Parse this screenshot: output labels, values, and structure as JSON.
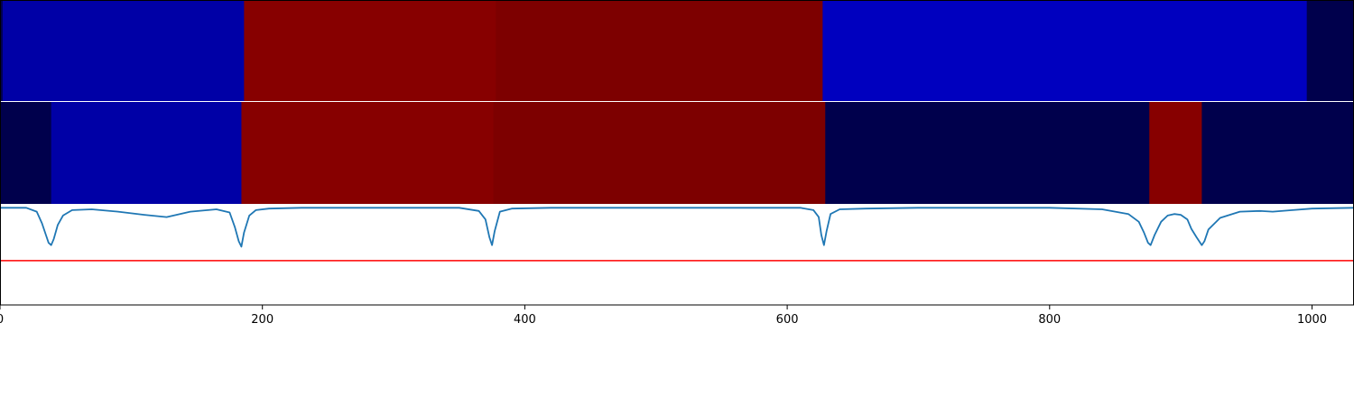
{
  "chart_data": {
    "type": "heatmap",
    "title": "",
    "xlabel": "",
    "ylabel": "",
    "xlim": [
      0,
      1032
    ],
    "x_ticks": [
      0,
      200,
      400,
      600,
      800,
      1000
    ],
    "grid": false,
    "legend": "none",
    "segment_rows": [
      {
        "segments": [
          {
            "start": 0,
            "end": 2,
            "color": "#00004c"
          },
          {
            "start": 2,
            "end": 186,
            "color": "#0000a6"
          },
          {
            "start": 186,
            "end": 378,
            "color": "#870000"
          },
          {
            "start": 378,
            "end": 627,
            "color": "#7d0000"
          },
          {
            "start": 627,
            "end": 996,
            "color": "#0000bf"
          },
          {
            "start": 996,
            "end": 1032,
            "color": "#00004c"
          }
        ]
      },
      {
        "segments": [
          {
            "start": 0,
            "end": 39,
            "color": "#00004c"
          },
          {
            "start": 39,
            "end": 184,
            "color": "#0000a6"
          },
          {
            "start": 184,
            "end": 376,
            "color": "#870000"
          },
          {
            "start": 376,
            "end": 629,
            "color": "#7d0000"
          },
          {
            "start": 629,
            "end": 876,
            "color": "#00004c"
          },
          {
            "start": 876,
            "end": 916,
            "color": "#870000"
          },
          {
            "start": 916,
            "end": 1032,
            "color": "#00004c"
          }
        ]
      }
    ],
    "line_panel": {
      "ylim": [
        -1.25,
        0.05
      ],
      "threshold": -0.68,
      "threshold_color": "#ff0000",
      "series": [
        {
          "color": "#1f77b4",
          "x": [
            0,
            20,
            28,
            32,
            35,
            37,
            39,
            41,
            44,
            48,
            55,
            70,
            90,
            110,
            127,
            145,
            165,
            175,
            179,
            182,
            184,
            186,
            190,
            195,
            205,
            230,
            300,
            350,
            365,
            370,
            373,
            375,
            377,
            381,
            390,
            420,
            500,
            560,
            610,
            620,
            624,
            626,
            628,
            630,
            633,
            640,
            660,
            700,
            800,
            840,
            860,
            868,
            872,
            875,
            877,
            880,
            885,
            890,
            895,
            900,
            905,
            908,
            912,
            916,
            918,
            921,
            930,
            945,
            960,
            970,
            985,
            1000,
            1032
          ],
          "y": [
            0,
            0,
            -0.05,
            -0.2,
            -0.35,
            -0.45,
            -0.48,
            -0.4,
            -0.22,
            -0.1,
            -0.03,
            -0.02,
            -0.05,
            -0.09,
            -0.12,
            -0.05,
            -0.02,
            -0.06,
            -0.25,
            -0.43,
            -0.5,
            -0.32,
            -0.1,
            -0.03,
            -0.01,
            0,
            0,
            0,
            -0.04,
            -0.15,
            -0.38,
            -0.48,
            -0.3,
            -0.05,
            -0.01,
            0,
            0,
            0,
            0,
            -0.03,
            -0.12,
            -0.35,
            -0.48,
            -0.3,
            -0.08,
            -0.02,
            -0.01,
            0,
            0,
            -0.02,
            -0.08,
            -0.18,
            -0.32,
            -0.45,
            -0.48,
            -0.35,
            -0.18,
            -0.1,
            -0.08,
            -0.09,
            -0.15,
            -0.27,
            -0.38,
            -0.48,
            -0.43,
            -0.28,
            -0.13,
            -0.05,
            -0.04,
            -0.05,
            -0.03,
            -0.01,
            0
          ]
        }
      ]
    }
  }
}
